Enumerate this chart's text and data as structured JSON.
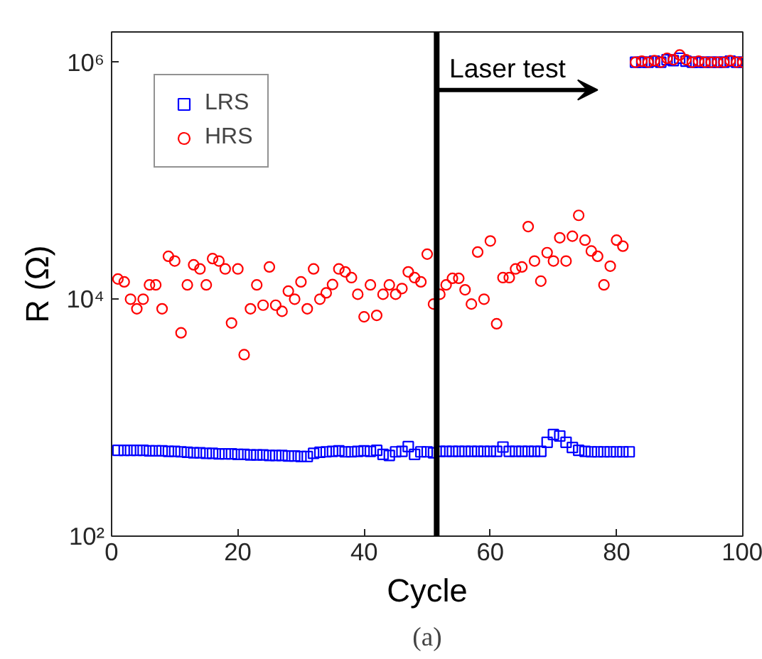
{
  "chart_data": {
    "type": "scatter",
    "xlabel": "Cycle",
    "ylabel": "R (Ω)",
    "log": "y",
    "xlim": [
      0,
      100
    ],
    "xticks": [
      0,
      20,
      40,
      60,
      80,
      100
    ],
    "ylim": [
      100,
      1800000
    ],
    "yticks": [
      {
        "value": 100,
        "label": "10²"
      },
      {
        "value": 10000,
        "label": "10⁴"
      },
      {
        "value": 1000000,
        "label": "10⁶"
      }
    ],
    "grid": false,
    "legend": "top left",
    "series": [
      {
        "name": "LRS",
        "color": "#0000ff",
        "marker": "square",
        "x": [
          1,
          2,
          3,
          4,
          5,
          6,
          7,
          8,
          9,
          10,
          11,
          12,
          13,
          14,
          15,
          16,
          17,
          18,
          19,
          20,
          21,
          22,
          23,
          24,
          25,
          26,
          27,
          28,
          29,
          30,
          31,
          32,
          33,
          34,
          35,
          36,
          37,
          38,
          39,
          40,
          41,
          42,
          43,
          44,
          45,
          46,
          47,
          48,
          49,
          50,
          51,
          52,
          53,
          54,
          55,
          56,
          57,
          58,
          59,
          60,
          61,
          62,
          63,
          64,
          65,
          66,
          67,
          68,
          69,
          70,
          71,
          72,
          73,
          74,
          75,
          76,
          77,
          78,
          79,
          80,
          81,
          82,
          83,
          84,
          85,
          86,
          87,
          88,
          89,
          90,
          91,
          92,
          93,
          94,
          95,
          96,
          97,
          98,
          99,
          100
        ],
        "values": [
          530,
          530,
          530,
          530,
          530,
          525,
          525,
          525,
          520,
          520,
          515,
          510,
          505,
          505,
          500,
          500,
          495,
          495,
          495,
          490,
          490,
          485,
          485,
          485,
          480,
          480,
          480,
          475,
          475,
          470,
          470,
          500,
          510,
          515,
          520,
          525,
          515,
          515,
          520,
          525,
          520,
          530,
          490,
          480,
          515,
          520,
          570,
          490,
          515,
          515,
          505,
          520,
          520,
          520,
          520,
          520,
          520,
          520,
          520,
          520,
          520,
          565,
          520,
          520,
          520,
          520,
          520,
          520,
          620,
          720,
          700,
          620,
          560,
          530,
          520,
          515,
          515,
          515,
          515,
          515,
          515,
          515,
          1000000,
          1000000,
          1000000,
          1020000,
          1000000,
          1050000,
          1030000,
          1080000,
          1020000,
          1000000,
          1000000,
          1000000,
          1000000,
          1000000,
          1000000,
          1020000,
          1000000,
          1000000
        ]
      },
      {
        "name": "HRS",
        "color": "#ff0000",
        "marker": "circle",
        "x": [
          1,
          2,
          3,
          4,
          5,
          6,
          7,
          8,
          9,
          10,
          11,
          12,
          13,
          14,
          15,
          16,
          17,
          18,
          19,
          20,
          21,
          22,
          23,
          24,
          25,
          26,
          27,
          28,
          29,
          30,
          31,
          32,
          33,
          34,
          35,
          36,
          37,
          38,
          39,
          40,
          41,
          42,
          43,
          44,
          45,
          46,
          47,
          48,
          49,
          50,
          51,
          52,
          53,
          54,
          55,
          56,
          57,
          58,
          59,
          60,
          61,
          62,
          63,
          64,
          65,
          66,
          67,
          68,
          69,
          70,
          71,
          72,
          73,
          74,
          75,
          76,
          77,
          78,
          79,
          80,
          81,
          83,
          84,
          85,
          86,
          87,
          88,
          89,
          90,
          91,
          92,
          93,
          94,
          95,
          96,
          97,
          98,
          99,
          100
        ],
        "values": [
          14800,
          14000,
          10000,
          8300,
          10000,
          13200,
          13200,
          8300,
          23000,
          21000,
          5200,
          13200,
          19500,
          18000,
          13200,
          22000,
          21000,
          18000,
          6300,
          18000,
          3400,
          8300,
          13200,
          8900,
          18700,
          8900,
          7900,
          11700,
          10000,
          14000,
          8300,
          18000,
          10000,
          11300,
          13300,
          18000,
          17000,
          15200,
          11000,
          7100,
          13200,
          7300,
          11000,
          13200,
          11000,
          12300,
          17000,
          15200,
          14000,
          24000,
          9100,
          11000,
          13200,
          15000,
          15000,
          12000,
          9100,
          25000,
          10000,
          31000,
          6200,
          15200,
          15200,
          18000,
          18700,
          41000,
          21000,
          14200,
          24700,
          21000,
          33000,
          21000,
          34000,
          51000,
          31500,
          25500,
          23000,
          13200,
          19000,
          31500,
          28000,
          1000000,
          1020000,
          1000000,
          1030000,
          1000000,
          1080000,
          1050000,
          1150000,
          1050000,
          1000000,
          1020000,
          1000000,
          1000000,
          1000000,
          1000000,
          1030000,
          1000000,
          1000000
        ]
      }
    ],
    "ref_lines": [
      {
        "axis": "x",
        "value": 51.5,
        "label": "Laser test",
        "color": "#000000"
      }
    ],
    "annotations": [
      "(a)"
    ]
  }
}
